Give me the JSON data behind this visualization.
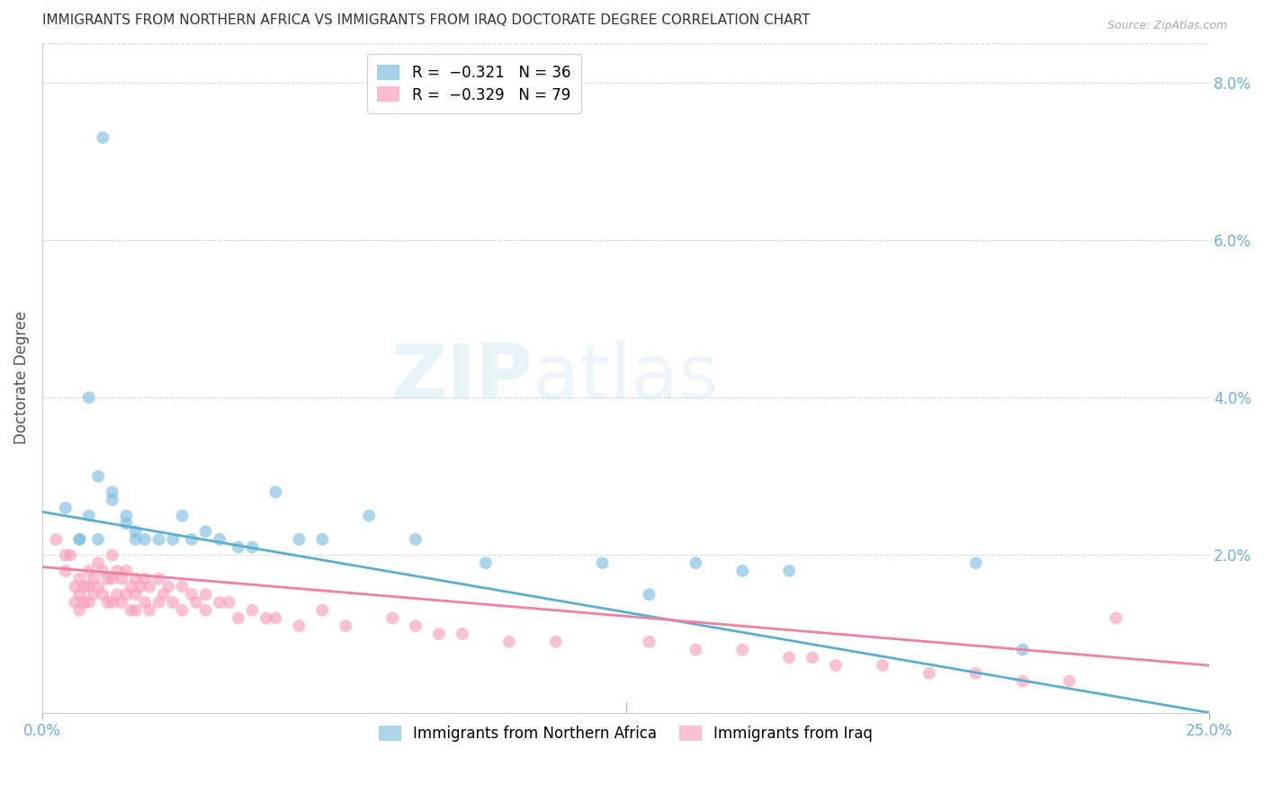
{
  "title": "IMMIGRANTS FROM NORTHERN AFRICA VS IMMIGRANTS FROM IRAQ DOCTORATE DEGREE CORRELATION CHART",
  "source": "Source: ZipAtlas.com",
  "ylabel": "Doctorate Degree",
  "right_yticks": [
    0.0,
    0.02,
    0.04,
    0.06,
    0.08
  ],
  "right_yticklabels": [
    "",
    "2.0%",
    "4.0%",
    "6.0%",
    "8.0%"
  ],
  "xlim": [
    0.0,
    0.25
  ],
  "ylim": [
    0.0,
    0.085
  ],
  "legend_title_blue": "Immigrants from Northern Africa",
  "legend_title_pink": "Immigrants from Iraq",
  "series_blue": {
    "name": "Immigrants from Northern Africa",
    "color": "#7fbfdf",
    "x": [
      0.013,
      0.005,
      0.01,
      0.008,
      0.012,
      0.015,
      0.018,
      0.02,
      0.01,
      0.012,
      0.015,
      0.018,
      0.02,
      0.025,
      0.03,
      0.038,
      0.042,
      0.035,
      0.055,
      0.06,
      0.07,
      0.05,
      0.08,
      0.12,
      0.14,
      0.15,
      0.16,
      0.008,
      0.022,
      0.028,
      0.032,
      0.045,
      0.095,
      0.13,
      0.2,
      0.21
    ],
    "y": [
      0.073,
      0.026,
      0.025,
      0.022,
      0.022,
      0.027,
      0.024,
      0.023,
      0.04,
      0.03,
      0.028,
      0.025,
      0.022,
      0.022,
      0.025,
      0.022,
      0.021,
      0.023,
      0.022,
      0.022,
      0.025,
      0.028,
      0.022,
      0.019,
      0.019,
      0.018,
      0.018,
      0.022,
      0.022,
      0.022,
      0.022,
      0.021,
      0.019,
      0.015,
      0.019,
      0.008
    ]
  },
  "series_pink": {
    "name": "Immigrants from Iraq",
    "color": "#f8a0b8",
    "x": [
      0.003,
      0.005,
      0.005,
      0.006,
      0.007,
      0.007,
      0.008,
      0.008,
      0.008,
      0.009,
      0.009,
      0.01,
      0.01,
      0.01,
      0.011,
      0.011,
      0.012,
      0.012,
      0.013,
      0.013,
      0.014,
      0.014,
      0.015,
      0.015,
      0.015,
      0.016,
      0.016,
      0.017,
      0.017,
      0.018,
      0.018,
      0.019,
      0.019,
      0.02,
      0.02,
      0.02,
      0.021,
      0.022,
      0.022,
      0.023,
      0.023,
      0.025,
      0.025,
      0.026,
      0.027,
      0.028,
      0.03,
      0.03,
      0.032,
      0.033,
      0.035,
      0.035,
      0.038,
      0.04,
      0.042,
      0.045,
      0.048,
      0.05,
      0.055,
      0.06,
      0.065,
      0.075,
      0.08,
      0.085,
      0.09,
      0.1,
      0.11,
      0.13,
      0.14,
      0.15,
      0.16,
      0.165,
      0.17,
      0.18,
      0.19,
      0.2,
      0.21,
      0.22,
      0.23
    ],
    "y": [
      0.022,
      0.02,
      0.018,
      0.02,
      0.016,
      0.014,
      0.017,
      0.015,
      0.013,
      0.016,
      0.014,
      0.018,
      0.016,
      0.014,
      0.017,
      0.015,
      0.019,
      0.016,
      0.018,
      0.015,
      0.017,
      0.014,
      0.02,
      0.017,
      0.014,
      0.018,
      0.015,
      0.017,
      0.014,
      0.018,
      0.015,
      0.016,
      0.013,
      0.017,
      0.015,
      0.013,
      0.016,
      0.017,
      0.014,
      0.016,
      0.013,
      0.017,
      0.014,
      0.015,
      0.016,
      0.014,
      0.016,
      0.013,
      0.015,
      0.014,
      0.015,
      0.013,
      0.014,
      0.014,
      0.012,
      0.013,
      0.012,
      0.012,
      0.011,
      0.013,
      0.011,
      0.012,
      0.011,
      0.01,
      0.01,
      0.009,
      0.009,
      0.009,
      0.008,
      0.008,
      0.007,
      0.007,
      0.006,
      0.006,
      0.005,
      0.005,
      0.004,
      0.004,
      0.012
    ]
  },
  "blue_line": {
    "x0": 0.0,
    "y0": 0.0255,
    "x1": 0.25,
    "y1": 0.0
  },
  "pink_line": {
    "x0": 0.0,
    "y0": 0.0185,
    "x1": 0.25,
    "y1": 0.006
  },
  "bg_color": "#ffffff",
  "grid_color": "#d8d8d8",
  "title_color": "#333333",
  "axis_color": "#6baed6",
  "title_fontsize": 11,
  "label_fontsize": 11
}
